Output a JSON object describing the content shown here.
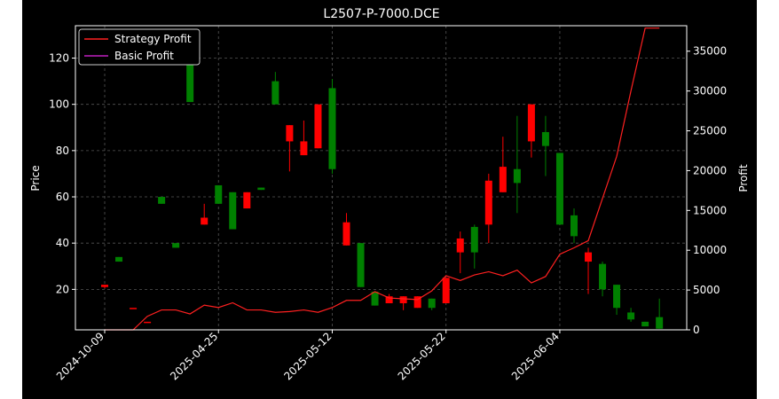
{
  "chart_data": {
    "type": "candlestick+line",
    "title": "L2507-P-7000.DCE",
    "ylabel_left": "Price",
    "ylabel_right": "Profit",
    "ylim_left": [
      2.5,
      134
    ],
    "ylim_right": [
      0,
      38200
    ],
    "yticks_left": [
      20,
      40,
      60,
      80,
      100,
      120
    ],
    "yticks_right": [
      0,
      5000,
      10000,
      15000,
      20000,
      25000,
      30000,
      35000
    ],
    "x_tick_labels": [
      {
        "index": 0,
        "label": "2024-10-09"
      },
      {
        "index": 8,
        "label": "2025-04-25"
      },
      {
        "index": 16,
        "label": "2025-05-12"
      },
      {
        "index": 24,
        "label": "2025-05-22"
      },
      {
        "index": 32,
        "label": "2025-06-04"
      }
    ],
    "grid": true,
    "legend_position": "top-left",
    "colors": {
      "background": "#000000",
      "up": "#ff0000",
      "down": "#008000",
      "strategy": "#ff2020",
      "basic": "#c020c0",
      "grid": "#555555",
      "text": "#ffffff"
    },
    "series": [
      {
        "name": "Strategy Profit",
        "values": [
          -300,
          -300,
          0,
          1700,
          2500,
          2500,
          2000,
          3100,
          2800,
          3400,
          2500,
          2500,
          2200,
          2300,
          2500,
          2200,
          2800,
          3700,
          3700,
          4800,
          4000,
          3900,
          3800,
          4900,
          6800,
          6200,
          6900,
          7300,
          6800,
          7500,
          5900,
          6700,
          9500,
          10300,
          11200,
          16500,
          21800,
          30000,
          37900,
          37900
        ]
      },
      {
        "name": "Basic Profit",
        "values": [
          null,
          null,
          null,
          null,
          null,
          null,
          null,
          null,
          null,
          null,
          null,
          null,
          null,
          null,
          null,
          null,
          null,
          null,
          null,
          null,
          null,
          null,
          null,
          null,
          null,
          null,
          null,
          null,
          null,
          null,
          null,
          null,
          null,
          null,
          null,
          null,
          null,
          null,
          null,
          null
        ]
      }
    ],
    "candles": [
      {
        "open": 21.0,
        "high": 22.0,
        "low": 20.5,
        "close": 22.0
      },
      {
        "open": 34.0,
        "high": 34.0,
        "low": 32.0,
        "close": 32.0
      },
      {
        "open": 12.0,
        "high": 12.0,
        "low": 12.0,
        "close": 12.0
      },
      {
        "open": 6.0,
        "high": 6.0,
        "low": 6.0,
        "close": 6.0
      },
      {
        "open": 60.0,
        "high": 60.0,
        "low": 57.0,
        "close": 57.0
      },
      {
        "open": 40.0,
        "high": 40.0,
        "low": 38.0,
        "close": 38.0
      },
      {
        "open": 132.0,
        "high": 132.0,
        "low": 101.0,
        "close": 101.0
      },
      {
        "open": 48.0,
        "high": 57.0,
        "low": 48.0,
        "close": 51.0
      },
      {
        "open": 65.0,
        "high": 65.0,
        "low": 57.0,
        "close": 57.0
      },
      {
        "open": 62.0,
        "high": 62.0,
        "low": 46.0,
        "close": 46.0
      },
      {
        "open": 55.0,
        "high": 62.0,
        "low": 55.0,
        "close": 62.0
      },
      {
        "open": 64.0,
        "high": 64.0,
        "low": 63.0,
        "close": 63.0
      },
      {
        "open": 110.0,
        "high": 114.0,
        "low": 100.0,
        "close": 100.0
      },
      {
        "open": 84.0,
        "high": 91.0,
        "low": 71.0,
        "close": 91.0
      },
      {
        "open": 78.0,
        "high": 93.0,
        "low": 78.0,
        "close": 84.0
      },
      {
        "open": 81.0,
        "high": 100.0,
        "low": 81.0,
        "close": 100.0
      },
      {
        "open": 107.0,
        "high": 111.0,
        "low": 70.0,
        "close": 72.0
      },
      {
        "open": 39.0,
        "high": 53.0,
        "low": 39.0,
        "close": 49.0
      },
      {
        "open": 40.0,
        "high": 40.0,
        "low": 21.0,
        "close": 21.0
      },
      {
        "open": 19.0,
        "high": 19.0,
        "low": 13.0,
        "close": 13.0
      },
      {
        "open": 14.0,
        "high": 18.0,
        "low": 14.0,
        "close": 17.0
      },
      {
        "open": 14.0,
        "high": 17.0,
        "low": 11.0,
        "close": 17.0
      },
      {
        "open": 12.0,
        "high": 17.0,
        "low": 12.0,
        "close": 17.0
      },
      {
        "open": 16.0,
        "high": 16.0,
        "low": 11.0,
        "close": 12.0
      },
      {
        "open": 14.0,
        "high": 25.0,
        "low": 14.0,
        "close": 25.0
      },
      {
        "open": 36.0,
        "high": 45.0,
        "low": 27.0,
        "close": 42.0
      },
      {
        "open": 47.0,
        "high": 48.0,
        "low": 29.0,
        "close": 36.0
      },
      {
        "open": 48.0,
        "high": 70.0,
        "low": 40.0,
        "close": 67.0
      },
      {
        "open": 62.0,
        "high": 86.0,
        "low": 62.0,
        "close": 73.0
      },
      {
        "open": 72.0,
        "high": 95.0,
        "low": 53.0,
        "close": 66.0
      },
      {
        "open": 84.0,
        "high": 100.0,
        "low": 77.0,
        "close": 100.0
      },
      {
        "open": 88.0,
        "high": 95.0,
        "low": 69.0,
        "close": 82.0
      },
      {
        "open": 79.0,
        "high": 79.0,
        "low": 48.0,
        "close": 48.0
      },
      {
        "open": 52.0,
        "high": 55.0,
        "low": 40.0,
        "close": 43.0
      },
      {
        "open": 32.0,
        "high": 38.0,
        "low": 18.0,
        "close": 36.0
      },
      {
        "open": 31.0,
        "high": 32.0,
        "low": 17.0,
        "close": 20.0
      },
      {
        "open": 22.0,
        "high": 22.0,
        "low": 9.0,
        "close": 12.0
      },
      {
        "open": 10.0,
        "high": 12.0,
        "low": 6.0,
        "close": 7.0
      },
      {
        "open": 6.0,
        "high": 6.0,
        "low": 4.0,
        "close": 4.0
      },
      {
        "open": 8.0,
        "high": 16.0,
        "low": 3.0,
        "close": 3.0
      }
    ]
  }
}
